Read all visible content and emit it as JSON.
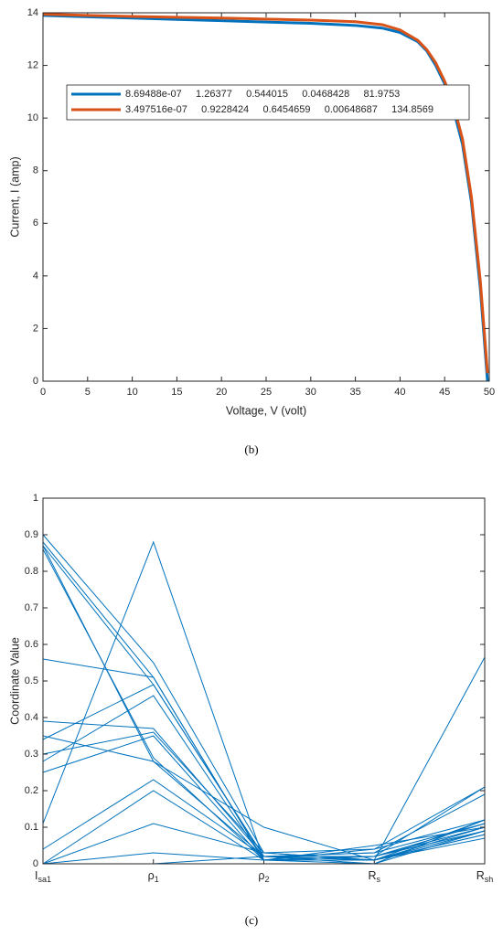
{
  "chart_data": [
    {
      "type": "line",
      "caption": "(b)",
      "xlabel": "Voltage, V (volt)",
      "ylabel": "Current, I (amp)",
      "x": [
        0,
        5,
        10,
        15,
        20,
        25,
        30,
        35,
        38,
        40,
        42,
        43,
        44,
        45,
        46,
        47,
        48,
        49,
        49.8
      ],
      "series": [
        {
          "name": "8.69488e-07     1.26377     0.544015     0.0468428     81.9753",
          "color": "#0072bd",
          "values": [
            13.9,
            13.85,
            13.8,
            13.75,
            13.7,
            13.65,
            13.6,
            13.52,
            13.42,
            13.25,
            12.9,
            12.55,
            12.0,
            11.3,
            10.3,
            9.0,
            6.8,
            3.5,
            0
          ]
        },
        {
          "name": "3.497516e-07     0.9228424     0.6454659     0.00648687     134.8569",
          "color": "#d95319",
          "values": [
            13.95,
            13.9,
            13.86,
            13.83,
            13.8,
            13.76,
            13.72,
            13.66,
            13.55,
            13.35,
            12.95,
            12.6,
            12.1,
            11.4,
            10.5,
            9.2,
            7.0,
            3.8,
            0.3
          ]
        }
      ],
      "xlim": [
        0,
        50
      ],
      "xticks": [
        0,
        5,
        10,
        15,
        20,
        25,
        30,
        35,
        40,
        45,
        50
      ],
      "ylim": [
        0,
        14
      ],
      "yticks": [
        0,
        2,
        4,
        6,
        8,
        10,
        12,
        14
      ]
    },
    {
      "type": "parallel",
      "caption": "(c)",
      "ylabel": "Coordinate Value",
      "categories": [
        "Isa1",
        "ρ1",
        "ρ2",
        "Rs",
        "Rsh"
      ],
      "color": "#0072bd",
      "series": [
        {
          "values": [
            0.88,
            0.51,
            0.01,
            0.01,
            0.12
          ]
        },
        {
          "values": [
            0.87,
            0.49,
            0.02,
            0.02,
            0.21
          ]
        },
        {
          "values": [
            0.9,
            0.55,
            0.03,
            0.01,
            0.1
          ]
        },
        {
          "values": [
            0.87,
            0.28,
            0.02,
            0,
            0.09
          ]
        },
        {
          "values": [
            0.56,
            0.51,
            0.01,
            0.02,
            0.11
          ]
        },
        {
          "values": [
            0.39,
            0.37,
            0.02,
            0.01,
            0.08
          ]
        },
        {
          "values": [
            0.35,
            0.28,
            0.1,
            0.01,
            0.565
          ]
        },
        {
          "values": [
            0.34,
            0.49,
            0.02,
            0.03,
            0.19
          ]
        },
        {
          "values": [
            0.28,
            0.46,
            0.01,
            0.04,
            0.21
          ]
        },
        {
          "values": [
            0.25,
            0.35,
            0.01,
            0.05,
            0.1
          ]
        },
        {
          "values": [
            0.11,
            0.88,
            0.01,
            0.02,
            0.09
          ]
        },
        {
          "values": [
            0.04,
            0.23,
            0.02,
            0.01,
            0.08
          ]
        },
        {
          "values": [
            0,
            0.2,
            0.01,
            0,
            0.12
          ]
        },
        {
          "values": [
            0,
            0.11,
            0.03,
            0.01,
            0.07
          ]
        },
        {
          "values": [
            0,
            0.03,
            0.01,
            0.02,
            0.1
          ]
        },
        {
          "values": [
            0,
            0,
            0.02,
            0.03,
            0.11
          ]
        },
        {
          "values": [
            0.3,
            0.36,
            0.03,
            0.04,
            0.12
          ]
        },
        {
          "values": [
            0.86,
            0.29,
            0.01,
            0.01,
            0.09
          ]
        }
      ],
      "ylim": [
        0,
        1
      ],
      "yticks": [
        0,
        0.1,
        0.2,
        0.3,
        0.4,
        0.5,
        0.6,
        0.7,
        0.8,
        0.9,
        1
      ]
    }
  ]
}
